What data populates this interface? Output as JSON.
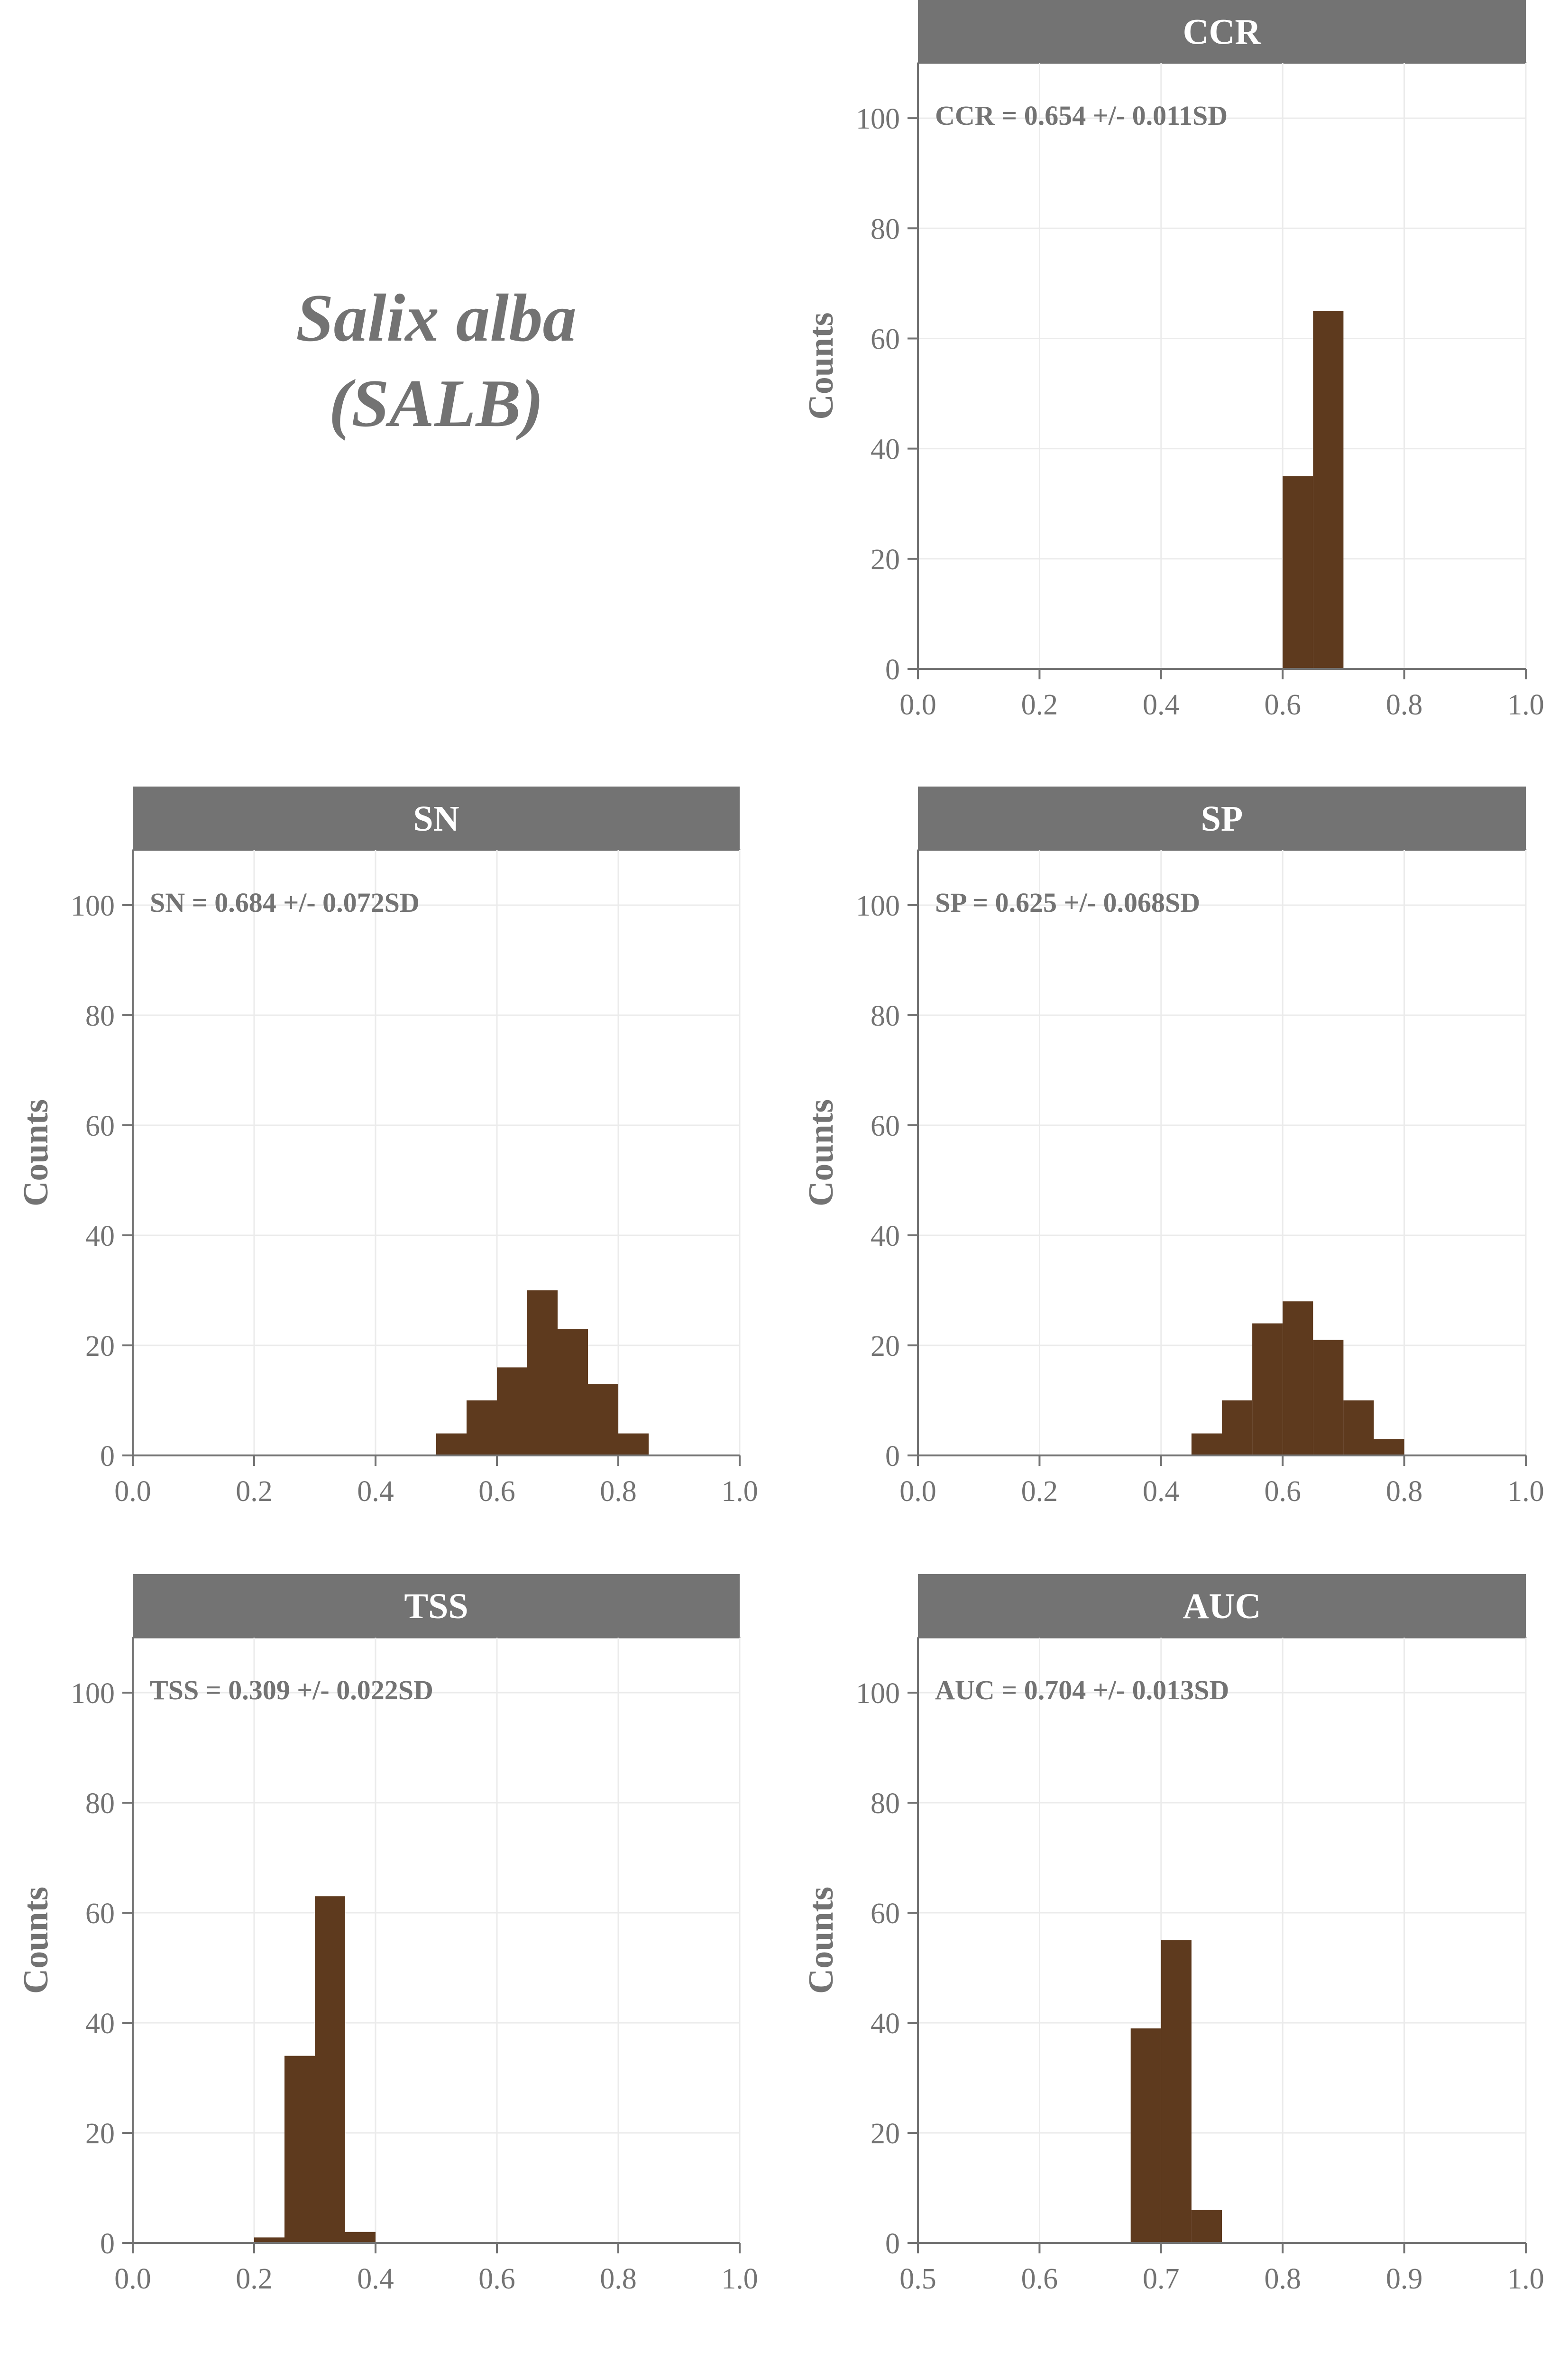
{
  "species": {
    "name": "Salix alba",
    "code": "(SALB)"
  },
  "colors": {
    "bar": "#5e3a1e",
    "strip": "#737373",
    "strip_text": "#ffffff",
    "text": "#737373",
    "grid": "#ebebeb",
    "axis": "#737373"
  },
  "y_label": "Counts",
  "chart_data": [
    {
      "type": "bar",
      "panel": "CCR",
      "annotation": "CCR = 0.654 +/- 0.011SD",
      "ylabel": "Counts",
      "xlim": [
        0.0,
        1.0
      ],
      "ylim": [
        0,
        110
      ],
      "x_ticks": [
        "0.0",
        "0.2",
        "0.4",
        "0.6",
        "0.8",
        "1.0"
      ],
      "y_ticks": [
        "0",
        "20",
        "40",
        "60",
        "80",
        "100"
      ],
      "bin_width": 0.05,
      "bins": [
        {
          "x0": 0.6,
          "x1": 0.65,
          "count": 35
        },
        {
          "x0": 0.65,
          "x1": 0.7,
          "count": 65
        }
      ]
    },
    {
      "type": "bar",
      "panel": "SN",
      "annotation": "SN = 0.684 +/- 0.072SD",
      "ylabel": "Counts",
      "xlim": [
        0.0,
        1.0
      ],
      "ylim": [
        0,
        110
      ],
      "x_ticks": [
        "0.0",
        "0.2",
        "0.4",
        "0.6",
        "0.8",
        "1.0"
      ],
      "y_ticks": [
        "0",
        "20",
        "40",
        "60",
        "80",
        "100"
      ],
      "bin_width": 0.05,
      "bins": [
        {
          "x0": 0.5,
          "x1": 0.55,
          "count": 4
        },
        {
          "x0": 0.55,
          "x1": 0.6,
          "count": 10
        },
        {
          "x0": 0.6,
          "x1": 0.65,
          "count": 16
        },
        {
          "x0": 0.65,
          "x1": 0.7,
          "count": 30
        },
        {
          "x0": 0.7,
          "x1": 0.75,
          "count": 23
        },
        {
          "x0": 0.75,
          "x1": 0.8,
          "count": 13
        },
        {
          "x0": 0.8,
          "x1": 0.85,
          "count": 4
        }
      ]
    },
    {
      "type": "bar",
      "panel": "SP",
      "annotation": "SP = 0.625 +/- 0.068SD",
      "ylabel": "Counts",
      "xlim": [
        0.0,
        1.0
      ],
      "ylim": [
        0,
        110
      ],
      "x_ticks": [
        "0.0",
        "0.2",
        "0.4",
        "0.6",
        "0.8",
        "1.0"
      ],
      "y_ticks": [
        "0",
        "20",
        "40",
        "60",
        "80",
        "100"
      ],
      "bin_width": 0.05,
      "bins": [
        {
          "x0": 0.45,
          "x1": 0.5,
          "count": 4
        },
        {
          "x0": 0.5,
          "x1": 0.55,
          "count": 10
        },
        {
          "x0": 0.55,
          "x1": 0.6,
          "count": 24
        },
        {
          "x0": 0.6,
          "x1": 0.65,
          "count": 28
        },
        {
          "x0": 0.65,
          "x1": 0.7,
          "count": 21
        },
        {
          "x0": 0.7,
          "x1": 0.75,
          "count": 10
        },
        {
          "x0": 0.75,
          "x1": 0.8,
          "count": 3
        }
      ]
    },
    {
      "type": "bar",
      "panel": "TSS",
      "annotation": "TSS = 0.309 +/- 0.022SD",
      "ylabel": "Counts",
      "xlim": [
        0.0,
        1.0
      ],
      "ylim": [
        0,
        110
      ],
      "x_ticks": [
        "0.0",
        "0.2",
        "0.4",
        "0.6",
        "0.8",
        "1.0"
      ],
      "y_ticks": [
        "0",
        "20",
        "40",
        "60",
        "80",
        "100"
      ],
      "bin_width": 0.05,
      "bins": [
        {
          "x0": 0.2,
          "x1": 0.25,
          "count": 1
        },
        {
          "x0": 0.25,
          "x1": 0.3,
          "count": 34
        },
        {
          "x0": 0.3,
          "x1": 0.35,
          "count": 63
        },
        {
          "x0": 0.35,
          "x1": 0.4,
          "count": 2
        }
      ]
    },
    {
      "type": "bar",
      "panel": "AUC",
      "annotation": "AUC = 0.704 +/- 0.013SD",
      "ylabel": "Counts",
      "xlim": [
        0.5,
        1.0
      ],
      "ylim": [
        0,
        110
      ],
      "x_ticks": [
        "0.5",
        "0.6",
        "0.7",
        "0.8",
        "0.9",
        "1.0"
      ],
      "y_ticks": [
        "0",
        "20",
        "40",
        "60",
        "80",
        "100"
      ],
      "bin_width": 0.025,
      "bins": [
        {
          "x0": 0.675,
          "x1": 0.7,
          "count": 39
        },
        {
          "x0": 0.7,
          "x1": 0.725,
          "count": 55
        },
        {
          "x0": 0.725,
          "x1": 0.75,
          "count": 6
        }
      ]
    }
  ]
}
